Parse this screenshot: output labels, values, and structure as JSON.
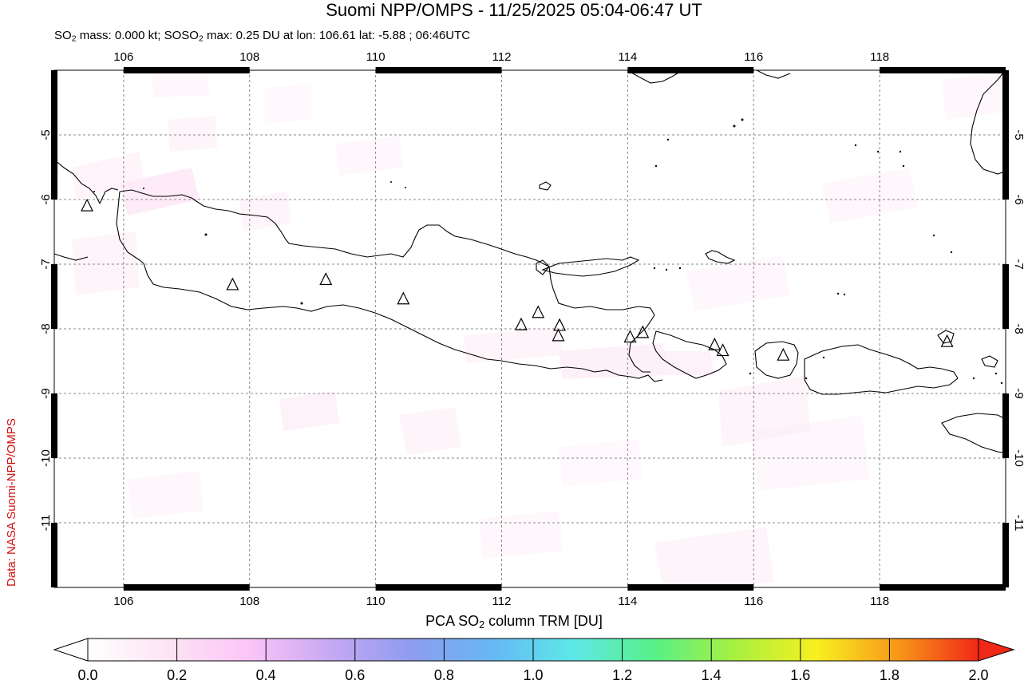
{
  "header": {
    "title": "Suomi NPP/OMPS - 11/25/2025 05:04-06:47 UT",
    "subtitle": {
      "mass_prefix": "SO",
      "mass_text": " mass: 0.000 kt; SO",
      "max_text": " max: 0.25 DU at lon: 106.61 lat: -5.88 ; 06:46UTC"
    }
  },
  "credit": "Data: NASA Suomi-NPP/OMPS",
  "map": {
    "lon_range": [
      104.9,
      120.0
    ],
    "lat_range": [
      -12.0,
      -4.0
    ],
    "lon_ticks": [
      "106",
      "108",
      "110",
      "112",
      "114",
      "116",
      "118"
    ],
    "lat_ticks": [
      "-5",
      "-6",
      "-7",
      "-8",
      "-9",
      "-10",
      "-11"
    ],
    "volcanoes": [
      {
        "lon": 105.42,
        "lat": -6.1
      },
      {
        "lon": 107.73,
        "lat": -7.32
      },
      {
        "lon": 109.21,
        "lat": -7.24
      },
      {
        "lon": 110.44,
        "lat": -7.54
      },
      {
        "lon": 112.31,
        "lat": -7.94
      },
      {
        "lon": 112.58,
        "lat": -7.75
      },
      {
        "lon": 112.92,
        "lat": -7.95
      },
      {
        "lon": 112.9,
        "lat": -8.11
      },
      {
        "lon": 114.04,
        "lat": -8.13
      },
      {
        "lon": 114.24,
        "lat": -8.06
      },
      {
        "lon": 115.38,
        "lat": -8.25
      },
      {
        "lon": 115.51,
        "lat": -8.34
      },
      {
        "lon": 116.47,
        "lat": -8.41
      },
      {
        "lon": 119.07,
        "lat": -8.2
      }
    ]
  },
  "colorbar": {
    "label_prefix": "PCA SO",
    "label_suffix": " column TRM [DU]",
    "ticks": [
      "0.0",
      "0.2",
      "0.4",
      "0.6",
      "0.8",
      "1.0",
      "1.2",
      "1.4",
      "1.6",
      "1.8",
      "2.0"
    ],
    "range": [
      0.0,
      2.0
    ],
    "colors": [
      "#ffffff",
      "#fde4f4",
      "#fbc4f8",
      "#c6a8f2",
      "#8e9cf0",
      "#66b8f4",
      "#5ee8e8",
      "#58f088",
      "#a8f040",
      "#f8f020",
      "#f89818",
      "#f02818"
    ]
  }
}
